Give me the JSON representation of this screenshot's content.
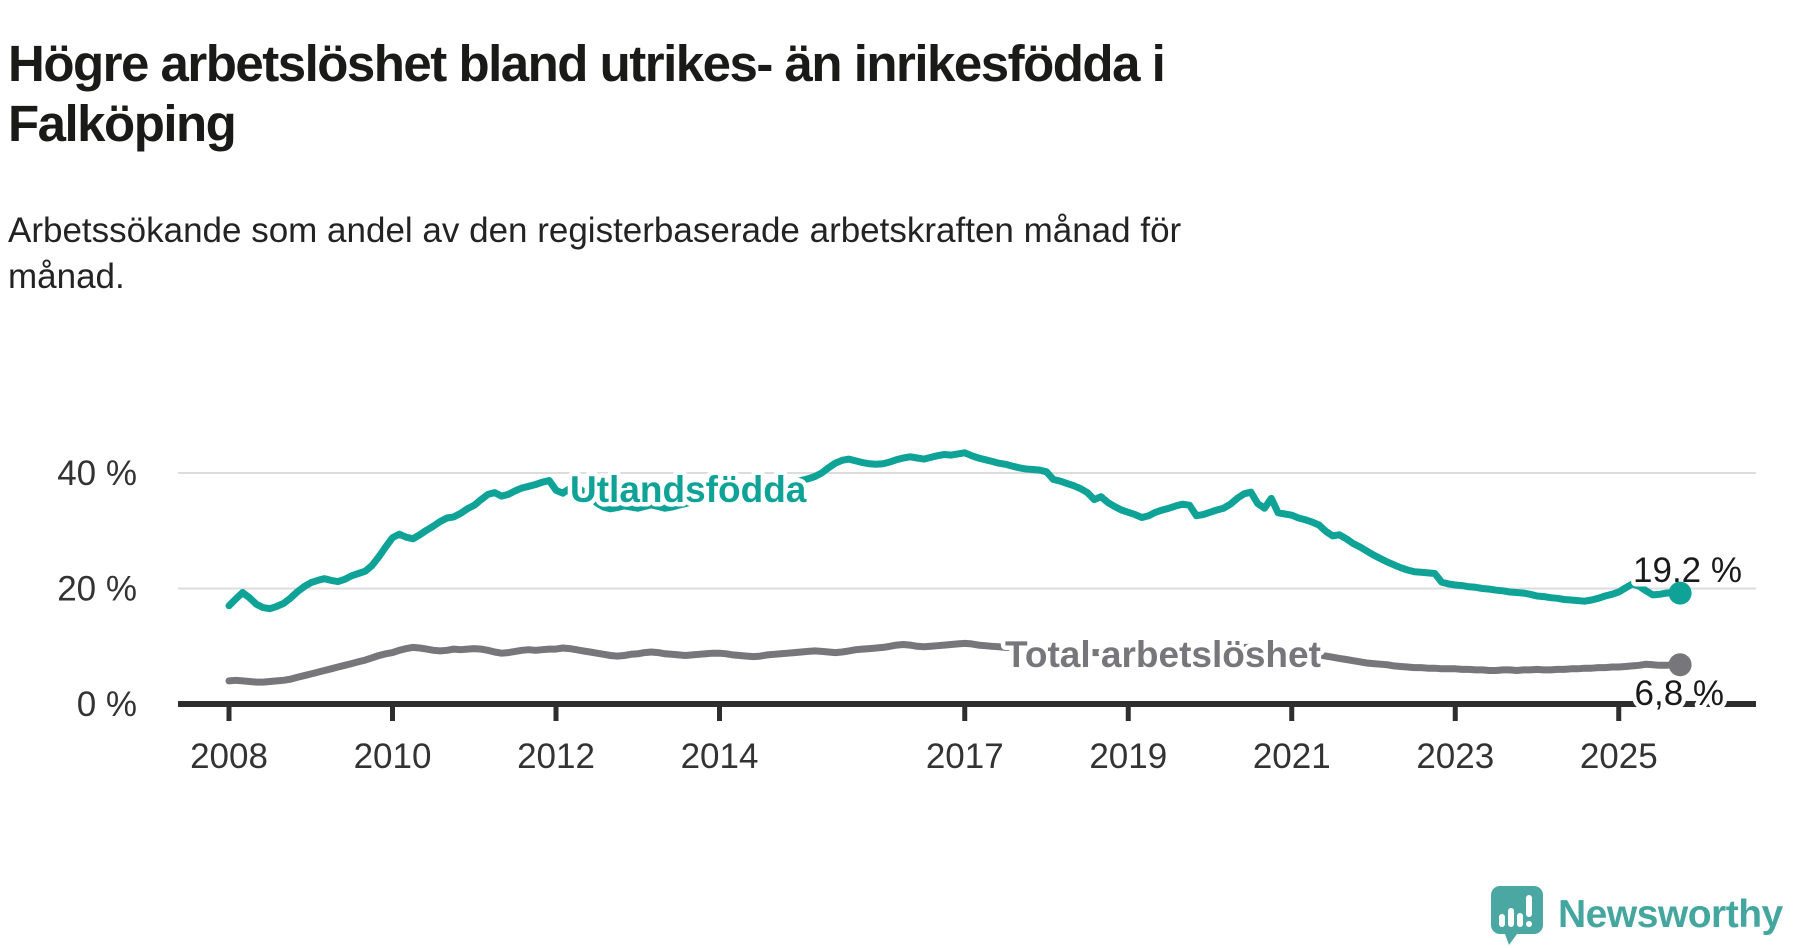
{
  "title_lines": [
    "Högre arbetslöshet bland utrikes- än inrikesfödda i",
    "Falköping"
  ],
  "subtitle_lines": [
    "Arbetssökande som andel av den registerbaserade arbetskraften månad för",
    "månad."
  ],
  "branding": {
    "logo_text": "Newsworthy",
    "logo_icon": "newsworthy-speech-bubble-bar-chart-icon",
    "logo_color": "#4BA7A1"
  },
  "colors": {
    "utlandsfodda": "#0FA297",
    "total": "#76767B",
    "gridline": "#DCDCDC",
    "axis": "#2E2E2E",
    "tick_text": "#333333",
    "title_text": "#1A1A19"
  },
  "chart_data": {
    "type": "line",
    "title": "Högre arbetslöshet bland utrikes- än inrikesfödda i Falköping",
    "subtitle": "Arbetssökande som andel av den registerbaserade arbetskraften månad för månad.",
    "unit": "%",
    "x_start": "2008-01",
    "x_end": "2025-10",
    "x_interval": "monthly",
    "ylim": [
      0,
      46
    ],
    "grid": "horizontal",
    "legend": "inline-labels",
    "x_ticks": [
      {
        "value": 2008,
        "label": "2008"
      },
      {
        "value": 2010,
        "label": "2010"
      },
      {
        "value": 2012,
        "label": "2012"
      },
      {
        "value": 2014,
        "label": "2014"
      },
      {
        "value": 2017,
        "label": "2017"
      },
      {
        "value": 2019,
        "label": "2019"
      },
      {
        "value": 2021,
        "label": "2021"
      },
      {
        "value": 2023,
        "label": "2023"
      },
      {
        "value": 2025,
        "label": "2025"
      }
    ],
    "y_ticks": [
      {
        "value": 0,
        "label": "0 %"
      },
      {
        "value": 20,
        "label": "20 %"
      },
      {
        "value": 40,
        "label": "40 %"
      }
    ],
    "series": [
      {
        "name": "Utlandsfödda",
        "color": "#0FA297",
        "end_label": "19,2 %",
        "end_value": 19.2,
        "values": [
          17.0,
          18.2,
          19.3,
          18.4,
          17.3,
          16.7,
          16.5,
          16.9,
          17.4,
          18.3,
          19.4,
          20.3,
          21.0,
          21.4,
          21.7,
          21.4,
          21.2,
          21.6,
          22.2,
          22.6,
          23.0,
          24.0,
          25.5,
          27.2,
          28.8,
          29.4,
          28.9,
          28.6,
          29.3,
          30.1,
          30.8,
          31.6,
          32.2,
          32.4,
          33.0,
          33.8,
          34.4,
          35.4,
          36.3,
          36.6,
          36.0,
          36.3,
          36.9,
          37.4,
          37.7,
          38.0,
          38.4,
          38.7,
          37.0,
          36.5,
          37.3,
          37.6,
          36.8,
          35.8,
          34.8,
          34.1,
          33.8,
          34.0,
          34.3,
          34.1,
          33.9,
          34.2,
          34.5,
          34.2,
          33.9,
          34.1,
          34.4,
          34.7,
          35.0,
          35.3,
          35.6,
          35.9,
          36.1,
          36.4,
          36.7,
          36.4,
          36.1,
          36.4,
          36.8,
          37.2,
          37.5,
          37.8,
          38.1,
          38.4,
          38.7,
          39.0,
          39.4,
          40.0,
          40.9,
          41.7,
          42.2,
          42.4,
          42.1,
          41.8,
          41.6,
          41.5,
          41.6,
          41.9,
          42.3,
          42.6,
          42.8,
          42.6,
          42.4,
          42.7,
          43.0,
          43.2,
          43.1,
          43.3,
          43.5,
          43.0,
          42.6,
          42.3,
          42.0,
          41.7,
          41.5,
          41.2,
          40.9,
          40.7,
          40.6,
          40.5,
          40.2,
          38.9,
          38.6,
          38.2,
          37.8,
          37.3,
          36.6,
          35.4,
          35.9,
          34.9,
          34.2,
          33.6,
          33.2,
          32.8,
          32.3,
          32.6,
          33.2,
          33.6,
          33.9,
          34.3,
          34.6,
          34.4,
          32.6,
          32.8,
          33.2,
          33.6,
          33.9,
          34.6,
          35.6,
          36.4,
          36.7,
          34.7,
          33.9,
          35.6,
          33.1,
          32.9,
          32.7,
          32.2,
          31.9,
          31.5,
          31.0,
          29.9,
          29.1,
          29.3,
          28.6,
          27.8,
          27.2,
          26.5,
          25.8,
          25.2,
          24.6,
          24.1,
          23.6,
          23.2,
          22.9,
          22.8,
          22.7,
          22.6,
          21.1,
          20.8,
          20.6,
          20.5,
          20.3,
          20.2,
          20.0,
          19.9,
          19.7,
          19.6,
          19.4,
          19.3,
          19.2,
          19.0,
          18.7,
          18.6,
          18.4,
          18.3,
          18.1,
          18.0,
          17.9,
          17.8,
          18.0,
          18.3,
          18.7,
          19.0,
          19.4,
          20.1,
          20.8,
          20.4,
          19.6,
          18.9,
          19.0,
          19.2,
          19.3,
          19.2
        ]
      },
      {
        "name": "Total arbetslöshet",
        "color": "#76767B",
        "end_label": "6,8 %",
        "end_value": 6.8,
        "values": [
          4.0,
          4.1,
          4.0,
          3.9,
          3.8,
          3.8,
          3.9,
          4.0,
          4.1,
          4.3,
          4.6,
          4.9,
          5.2,
          5.5,
          5.8,
          6.1,
          6.4,
          6.7,
          7.0,
          7.3,
          7.6,
          8.0,
          8.4,
          8.7,
          8.9,
          9.3,
          9.6,
          9.8,
          9.7,
          9.5,
          9.3,
          9.2,
          9.3,
          9.5,
          9.4,
          9.5,
          9.6,
          9.5,
          9.3,
          9.0,
          8.8,
          8.9,
          9.1,
          9.3,
          9.4,
          9.3,
          9.4,
          9.5,
          9.5,
          9.7,
          9.6,
          9.4,
          9.2,
          9.0,
          8.8,
          8.6,
          8.4,
          8.3,
          8.4,
          8.6,
          8.7,
          8.9,
          9.0,
          8.9,
          8.7,
          8.6,
          8.5,
          8.4,
          8.5,
          8.6,
          8.7,
          8.8,
          8.8,
          8.7,
          8.5,
          8.4,
          8.3,
          8.2,
          8.3,
          8.5,
          8.6,
          8.7,
          8.8,
          8.9,
          9.0,
          9.1,
          9.2,
          9.1,
          9.0,
          8.9,
          9.0,
          9.2,
          9.4,
          9.5,
          9.6,
          9.7,
          9.8,
          10.0,
          10.2,
          10.3,
          10.2,
          10.0,
          9.9,
          10.0,
          10.1,
          10.2,
          10.3,
          10.4,
          10.5,
          10.4,
          10.2,
          10.1,
          10.0,
          9.9,
          9.8,
          9.8,
          9.7,
          9.6,
          9.6,
          9.5,
          9.5,
          9.4,
          9.3,
          9.2,
          9.1,
          9.0,
          9.0,
          8.9,
          8.9,
          8.8,
          8.8,
          8.9,
          8.9,
          8.8,
          8.7,
          8.6,
          8.6,
          8.7,
          8.8,
          8.9,
          8.9,
          8.8,
          8.7,
          8.8,
          8.9,
          9.0,
          9.2,
          9.5,
          9.7,
          9.8,
          9.8,
          9.7,
          9.5,
          9.4,
          9.3,
          9.2,
          9.1,
          9.0,
          8.9,
          8.7,
          8.5,
          8.3,
          8.1,
          7.9,
          7.7,
          7.5,
          7.3,
          7.1,
          7.0,
          6.9,
          6.8,
          6.6,
          6.5,
          6.4,
          6.3,
          6.3,
          6.2,
          6.2,
          6.1,
          6.1,
          6.1,
          6.0,
          6.0,
          5.9,
          5.9,
          5.8,
          5.8,
          5.9,
          5.9,
          5.8,
          5.9,
          5.9,
          6.0,
          5.9,
          5.9,
          6.0,
          6.0,
          6.1,
          6.1,
          6.2,
          6.2,
          6.3,
          6.3,
          6.4,
          6.4,
          6.5,
          6.6,
          6.7,
          6.9,
          6.8,
          6.7,
          6.7,
          6.8,
          6.8
        ]
      }
    ]
  }
}
